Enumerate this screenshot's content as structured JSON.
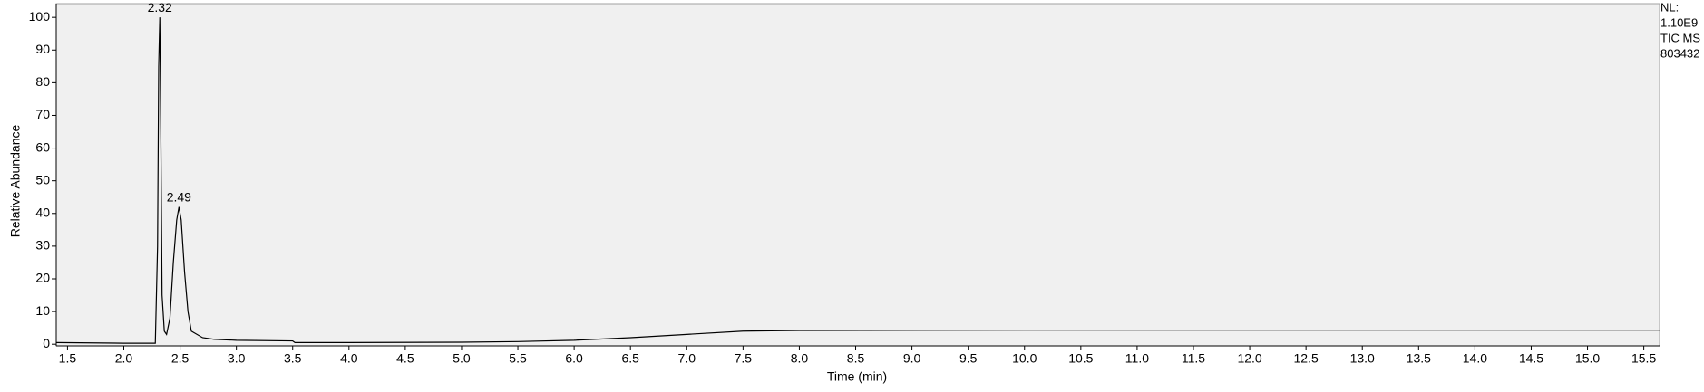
{
  "chart_data": {
    "type": "line",
    "xlabel": "Time (min)",
    "ylabel": "Relative Abundance",
    "side_text": [
      "NL:",
      "1.10E9",
      "TIC  MS",
      "803432"
    ],
    "x": [
      1.4,
      2.0,
      2.28,
      2.3,
      2.31,
      2.32,
      2.33,
      2.34,
      2.36,
      2.38,
      2.41,
      2.44,
      2.47,
      2.49,
      2.51,
      2.54,
      2.57,
      2.6,
      2.7,
      2.8,
      3.0,
      3.5,
      3.52,
      4.0,
      5.0,
      5.5,
      6.0,
      6.5,
      7.0,
      7.5,
      8.0,
      10.0,
      12.0,
      15.64
    ],
    "series": [
      {
        "name": "TIC",
        "color": "#000000",
        "values": [
          0.5,
          0.3,
          0.3,
          30,
          85,
          100,
          60,
          15,
          4,
          3,
          8,
          25,
          38,
          42,
          38,
          22,
          10,
          4,
          2,
          1.5,
          1.2,
          1.0,
          0.5,
          0.5,
          0.6,
          0.8,
          1.2,
          2,
          3,
          4,
          4.2,
          4.3,
          4.3,
          4.3
        ]
      }
    ],
    "annotations": [
      {
        "x": 2.32,
        "y": 100,
        "text": "2.32"
      },
      {
        "x": 2.49,
        "y": 42,
        "text": "2.49"
      }
    ],
    "xlim": [
      1.4,
      15.64
    ],
    "ylim": [
      -0.5,
      104.2
    ],
    "xticks": [
      1.5,
      {
        "value": 2,
        "label": "2.0"
      },
      2.5,
      {
        "value": 3,
        "label": "3.0"
      },
      3.5,
      {
        "value": 4,
        "label": "4.0"
      },
      4.5,
      {
        "value": 5,
        "label": "5.0"
      },
      5.5,
      {
        "value": 6,
        "label": "6.0"
      },
      6.5,
      {
        "value": 7,
        "label": "7.0"
      },
      7.5,
      {
        "value": 8,
        "label": "8.0"
      },
      8.5,
      {
        "value": 9,
        "label": "9.0"
      },
      9.5,
      {
        "value": 10,
        "label": "10.0"
      },
      10.5,
      {
        "value": 11,
        "label": "11.0"
      },
      11.5,
      {
        "value": 12,
        "label": "12.0"
      },
      12.5,
      {
        "value": 13,
        "label": "13.0"
      },
      13.5,
      {
        "value": 14,
        "label": "14.0"
      },
      14.5,
      {
        "value": 15,
        "label": "15.0"
      },
      15.5
    ],
    "yticks": [
      0,
      10,
      20,
      30,
      40,
      50,
      60,
      70,
      80,
      90,
      100
    ],
    "background": "#f0f0f0"
  }
}
